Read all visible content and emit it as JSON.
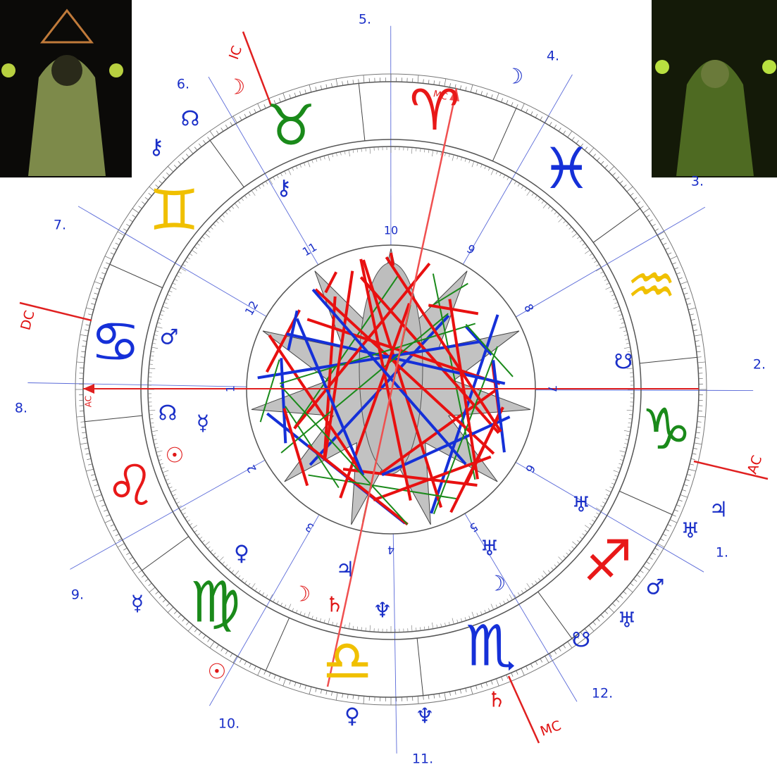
{
  "outer_houses": [
    "5.",
    "4.",
    "3.",
    "2.",
    "1.",
    "12.",
    "11.",
    "10.",
    "9.",
    "8.",
    "7.",
    "6."
  ],
  "inner_houses": [
    "10",
    "9",
    "8",
    "7",
    "6",
    "5",
    "4",
    "3",
    "2",
    "1",
    "12",
    "11"
  ],
  "angles": [
    "IC",
    "DC",
    "AC",
    "MC"
  ],
  "axis_marks": [
    "MC",
    "AC"
  ],
  "signs": [
    "♈",
    "♉",
    "♊",
    "♋",
    "♌",
    "♍",
    "♎",
    "♏",
    "♐",
    "♑",
    "♒",
    "♓"
  ],
  "planets_inner": [
    "⚷",
    "♂",
    "☊",
    "☿",
    "☉",
    "♀",
    "☽",
    "♄",
    "♃",
    "♆",
    "♅",
    "☽",
    "♅",
    "☋"
  ],
  "planets_outer": [
    "☽",
    "☊",
    "⚷",
    "☽",
    "♃",
    "♅",
    "♂",
    "♅",
    "☋",
    "♄",
    "♆",
    "♀",
    "☉",
    "☿"
  ]
}
